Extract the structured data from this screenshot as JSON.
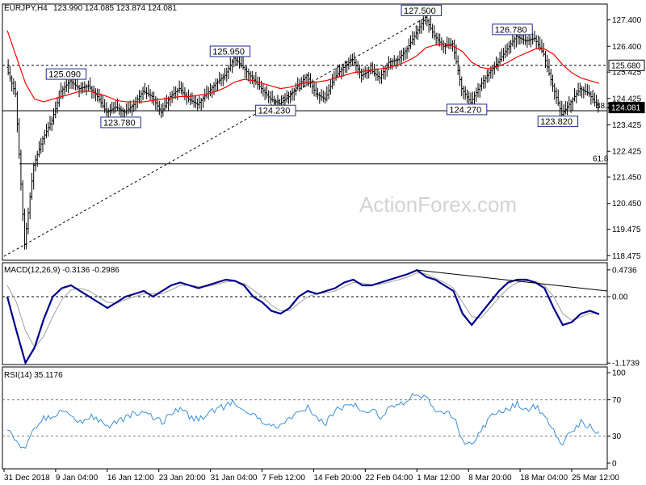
{
  "header": {
    "symbol": "EURJPY,H4",
    "ohlc": "123.990 124.085 123.874 124.081"
  },
  "watermark": "ActionForex.com",
  "colors": {
    "candle": "#000000",
    "ma": "#ff0000",
    "macd": "#00008b",
    "signal": "#a0a0a0",
    "rsi": "#3a8fd6",
    "box_border": "#1f2a8a",
    "price_tag": "#000000"
  },
  "chart_data": [
    {
      "type": "line",
      "title": "EURJPY,H4",
      "subtitle": "123.990 124.085 123.874 124.081",
      "y_ticks": [
        "127.400",
        "126.400",
        "125.425",
        "124.425",
        "123.425",
        "122.425",
        "121.450",
        "120.450",
        "119.475",
        "118.475"
      ],
      "ylim": [
        118.3,
        128.0
      ],
      "x_ticks": [
        "31 Dec 2018",
        "9 Jan 04:00",
        "16 Jan 12:00",
        "23 Jan 20:00",
        "31 Jan 04:00",
        "7 Feb 12:00",
        "14 Feb 20:00",
        "22 Feb 04:00",
        "1 Mar 12:00",
        "8 Mar 20:00",
        "18 Mar 04:00",
        "25 Mar 12:00"
      ],
      "series": [
        {
          "name": "close",
          "values": [
            125.6,
            124.6,
            118.9,
            121.9,
            122.9,
            123.6,
            124.7,
            125.09,
            124.8,
            124.9,
            124.5,
            123.9,
            124.1,
            123.9,
            124.2,
            124.7,
            124.5,
            123.9,
            124.5,
            124.8,
            124.4,
            124.2,
            124.6,
            125.0,
            125.3,
            125.95,
            125.6,
            125.2,
            124.8,
            124.4,
            124.23,
            124.5,
            124.9,
            125.3,
            124.6,
            124.4,
            125.2,
            125.6,
            125.9,
            125.3,
            125.5,
            125.2,
            125.8,
            125.9,
            126.3,
            126.9,
            127.5,
            126.8,
            126.4,
            126.5,
            124.8,
            124.27,
            124.9,
            125.4,
            125.8,
            126.3,
            126.78,
            126.6,
            126.7,
            126.1,
            124.9,
            123.82,
            124.3,
            124.8,
            124.6,
            124.081
          ]
        },
        {
          "name": "MA",
          "values": [
            127.0,
            126.0,
            125.0,
            124.4,
            124.3,
            124.4,
            124.5,
            124.6,
            124.7,
            124.7,
            124.6,
            124.5,
            124.35,
            124.3,
            124.3,
            124.3,
            124.35,
            124.4,
            124.45,
            124.5,
            124.5,
            124.55,
            124.6,
            124.7,
            124.85,
            125.05,
            125.15,
            125.1,
            125.0,
            124.9,
            124.8,
            124.85,
            124.95,
            125.05,
            125.05,
            125.1,
            125.2,
            125.3,
            125.4,
            125.45,
            125.5,
            125.55,
            125.6,
            125.7,
            125.85,
            126.05,
            126.35,
            126.45,
            126.5,
            126.4,
            126.2,
            125.8,
            125.6,
            125.55,
            125.65,
            125.8,
            126.0,
            126.15,
            126.3,
            126.3,
            126.1,
            125.7,
            125.4,
            125.2,
            125.1,
            125.0
          ]
        }
      ],
      "annotations": [
        "125.090",
        "125.950",
        "127.500",
        "126.780",
        "124.230",
        "124.270",
        "123.780",
        "123.820",
        "61.8",
        "38.2"
      ],
      "price_tags": [
        "125.680",
        "124.081"
      ]
    },
    {
      "type": "line",
      "title": "MACD(12,26,9) -0.3136 -0.2986",
      "y_ticks": [
        "0.4736",
        "0.00",
        "-1.1739"
      ],
      "ylim": [
        -1.2,
        0.6
      ],
      "series": [
        {
          "name": "MACD",
          "values": [
            0.0,
            -0.6,
            -1.17,
            -0.9,
            -0.4,
            0.0,
            0.15,
            0.2,
            0.1,
            0.0,
            -0.1,
            -0.2,
            -0.1,
            0.0,
            0.05,
            0.1,
            0.0,
            0.1,
            0.2,
            0.25,
            0.2,
            0.15,
            0.2,
            0.25,
            0.3,
            0.28,
            0.2,
            0.0,
            -0.1,
            -0.25,
            -0.3,
            -0.2,
            0.0,
            0.1,
            0.05,
            0.1,
            0.15,
            0.25,
            0.3,
            0.2,
            0.2,
            0.25,
            0.3,
            0.35,
            0.4,
            0.47,
            0.35,
            0.3,
            0.2,
            0.1,
            -0.3,
            -0.5,
            -0.3,
            -0.1,
            0.1,
            0.25,
            0.3,
            0.3,
            0.25,
            0.15,
            -0.2,
            -0.5,
            -0.45,
            -0.3,
            -0.25,
            -0.31
          ]
        },
        {
          "name": "Signal",
          "values": [
            0.2,
            -0.1,
            -0.6,
            -0.9,
            -0.7,
            -0.35,
            -0.05,
            0.12,
            0.15,
            0.1,
            0.0,
            -0.1,
            -0.12,
            -0.05,
            0.0,
            0.05,
            0.05,
            0.05,
            0.12,
            0.2,
            0.2,
            0.18,
            0.18,
            0.22,
            0.26,
            0.27,
            0.23,
            0.12,
            0.0,
            -0.15,
            -0.25,
            -0.25,
            -0.12,
            0.0,
            0.05,
            0.07,
            0.1,
            0.18,
            0.25,
            0.24,
            0.21,
            0.22,
            0.26,
            0.3,
            0.35,
            0.42,
            0.4,
            0.33,
            0.25,
            0.15,
            -0.1,
            -0.35,
            -0.38,
            -0.2,
            -0.02,
            0.15,
            0.25,
            0.28,
            0.27,
            0.2,
            0.0,
            -0.3,
            -0.42,
            -0.36,
            -0.29,
            -0.3
          ]
        }
      ]
    },
    {
      "type": "line",
      "title": "RSI(14) 35.1176",
      "y_ticks": [
        "100",
        "70",
        "30",
        "0"
      ],
      "ylim": [
        0,
        100
      ],
      "series": [
        {
          "name": "RSI",
          "values": [
            40,
            25,
            15,
            40,
            50,
            52,
            58,
            55,
            45,
            52,
            48,
            40,
            45,
            50,
            55,
            58,
            50,
            45,
            55,
            60,
            52,
            48,
            55,
            60,
            63,
            68,
            60,
            55,
            45,
            42,
            40,
            48,
            55,
            62,
            50,
            45,
            58,
            62,
            66,
            55,
            58,
            52,
            62,
            65,
            70,
            78,
            72,
            60,
            55,
            52,
            25,
            20,
            35,
            50,
            58,
            60,
            66,
            60,
            62,
            55,
            35,
            22,
            35,
            45,
            40,
            35
          ]
        }
      ]
    }
  ]
}
